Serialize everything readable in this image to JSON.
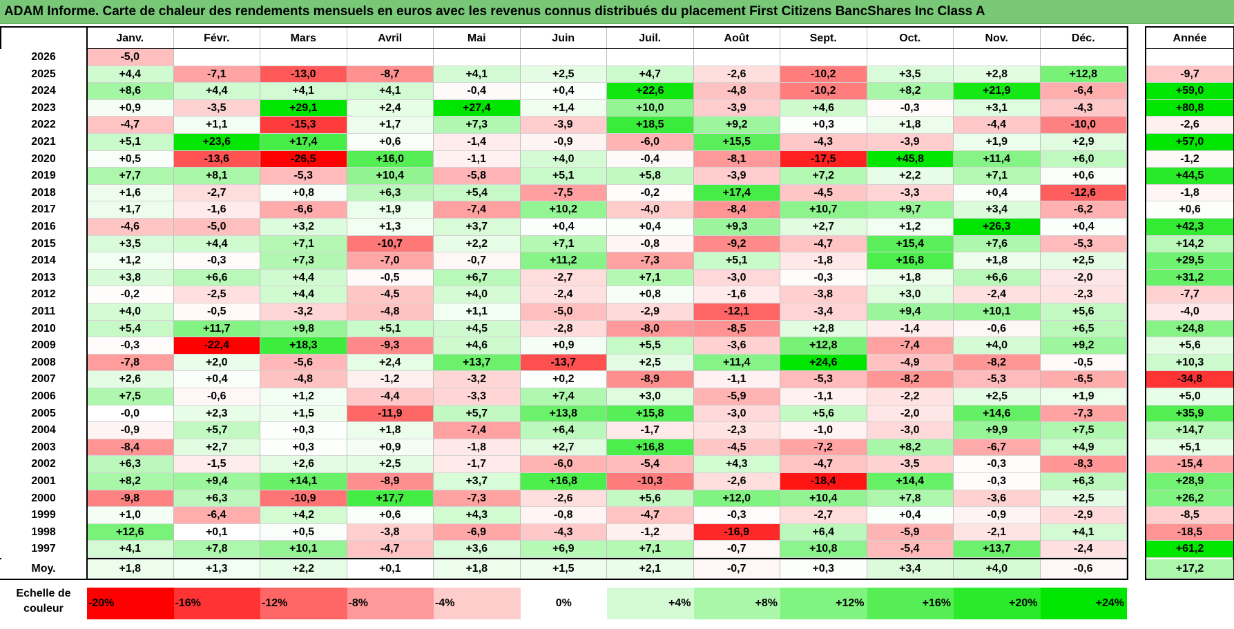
{
  "title": "ADAM Informe. Carte de chaleur des rendements mensuels en euros avec les revenus connus distribués du placement First Citizens BancShares Inc Class A",
  "colors": {
    "title_bg": "#78c878",
    "negative_max": "#ff0000",
    "neutral": "#ffffff",
    "positive_max": "#00e600"
  },
  "chart_data": {
    "type": "heatmap",
    "months": [
      "Janv.",
      "Févr.",
      "Mars",
      "Avril",
      "Mai",
      "Juin",
      "Juil.",
      "Août",
      "Sept.",
      "Oct.",
      "Nov.",
      "Déc."
    ],
    "year_header": "Année",
    "rows": [
      {
        "year": "2026",
        "months": [
          "-5,0",
          "",
          "",
          "",
          "",
          "",
          "",
          "",
          "",
          "",
          "",
          ""
        ],
        "annual": ""
      },
      {
        "year": "2025",
        "months": [
          "+4,4",
          "-7,1",
          "-13,0",
          "-8,7",
          "+4,1",
          "+2,5",
          "+4,7",
          "-2,6",
          "-10,2",
          "+3,5",
          "+2,8",
          "+12,8"
        ],
        "annual": "-9,7"
      },
      {
        "year": "2024",
        "months": [
          "+8,6",
          "+4,4",
          "+4,1",
          "+4,1",
          "-0,4",
          "+0,4",
          "+22,6",
          "-4,8",
          "-10,2",
          "+8,2",
          "+21,9",
          "-6,4"
        ],
        "annual": "+59,0"
      },
      {
        "year": "2023",
        "months": [
          "+0,9",
          "-3,5",
          "+29,1",
          "+2,4",
          "+27,4",
          "+1,4",
          "+10,0",
          "-3,9",
          "+4,6",
          "-0,3",
          "+3,1",
          "-4,3"
        ],
        "annual": "+80,8"
      },
      {
        "year": "2022",
        "months": [
          "-4,7",
          "+1,1",
          "-15,3",
          "+1,7",
          "+7,3",
          "-3,9",
          "+18,5",
          "+9,2",
          "+0,3",
          "+1,8",
          "-4,4",
          "-10,0"
        ],
        "annual": "-2,6"
      },
      {
        "year": "2021",
        "months": [
          "+5,1",
          "+23,6",
          "+17,4",
          "+0,6",
          "-1,4",
          "-0,9",
          "-6,0",
          "+15,5",
          "-4,3",
          "-3,9",
          "+1,9",
          "+2,9"
        ],
        "annual": "+57,0"
      },
      {
        "year": "2020",
        "months": [
          "+0,5",
          "-13,6",
          "-26,5",
          "+16,0",
          "-1,1",
          "+4,0",
          "-0,4",
          "-8,1",
          "-17,5",
          "+45,8",
          "+11,4",
          "+6,0"
        ],
        "annual": "-1,2"
      },
      {
        "year": "2019",
        "months": [
          "+7,7",
          "+8,1",
          "-5,3",
          "+10,4",
          "-5,8",
          "+5,1",
          "+5,8",
          "-3,9",
          "+7,2",
          "+2,2",
          "+7,1",
          "+0,6"
        ],
        "annual": "+44,5"
      },
      {
        "year": "2018",
        "months": [
          "+1,6",
          "-2,7",
          "+0,8",
          "+6,3",
          "+5,4",
          "-7,5",
          "-0,2",
          "+17,4",
          "-4,5",
          "-3,3",
          "+0,4",
          "-12,6"
        ],
        "annual": "-1,8"
      },
      {
        "year": "2017",
        "months": [
          "+1,7",
          "-1,6",
          "-6,6",
          "+1,9",
          "-7,4",
          "+10,2",
          "-4,0",
          "-8,4",
          "+10,7",
          "+9,7",
          "+3,4",
          "-6,2"
        ],
        "annual": "+0,6"
      },
      {
        "year": "2016",
        "months": [
          "-4,6",
          "-5,0",
          "+3,2",
          "+1,3",
          "+3,7",
          "+0,4",
          "+0,4",
          "+9,3",
          "+2,7",
          "+1,2",
          "+26,3",
          "+0,4"
        ],
        "annual": "+42,3"
      },
      {
        "year": "2015",
        "months": [
          "+3,5",
          "+4,4",
          "+7,1",
          "-10,7",
          "+2,2",
          "+7,1",
          "-0,8",
          "-9,2",
          "-4,7",
          "+15,4",
          "+7,6",
          "-5,3"
        ],
        "annual": "+14,2"
      },
      {
        "year": "2014",
        "months": [
          "+1,2",
          "-0,3",
          "+7,3",
          "-7,0",
          "-0,7",
          "+11,2",
          "-7,3",
          "+5,1",
          "-1,8",
          "+16,8",
          "+1,8",
          "+2,5"
        ],
        "annual": "+29,5"
      },
      {
        "year": "2013",
        "months": [
          "+3,8",
          "+6,6",
          "+4,4",
          "-0,5",
          "+6,7",
          "-2,7",
          "+7,1",
          "-3,0",
          "-0,3",
          "+1,8",
          "+6,6",
          "-2,0"
        ],
        "annual": "+31,2"
      },
      {
        "year": "2012",
        "months": [
          "-0,2",
          "-2,5",
          "+4,4",
          "-4,5",
          "+4,0",
          "-2,4",
          "+0,8",
          "-1,6",
          "-3,8",
          "+3,0",
          "-2,4",
          "-2,3"
        ],
        "annual": "-7,7"
      },
      {
        "year": "2011",
        "months": [
          "+4,0",
          "-0,5",
          "-3,2",
          "-4,8",
          "+1,1",
          "-5,0",
          "-2,9",
          "-12,1",
          "-3,4",
          "+9,4",
          "+10,1",
          "+5,6"
        ],
        "annual": "-4,0"
      },
      {
        "year": "2010",
        "months": [
          "+5,4",
          "+11,7",
          "+9,8",
          "+5,1",
          "+4,5",
          "-2,8",
          "-8,0",
          "-8,5",
          "+2,8",
          "-1,4",
          "-0,6",
          "+6,5"
        ],
        "annual": "+24,8"
      },
      {
        "year": "2009",
        "months": [
          "-0,3",
          "-22,4",
          "+18,3",
          "-9,3",
          "+4,6",
          "+0,9",
          "+5,5",
          "-3,6",
          "+12,8",
          "-7,4",
          "+4,0",
          "+9,2"
        ],
        "annual": "+5,6"
      },
      {
        "year": "2008",
        "months": [
          "-7,8",
          "+2,0",
          "-5,6",
          "+2,4",
          "+13,7",
          "-13,7",
          "+2,5",
          "+11,4",
          "+24,6",
          "-4,9",
          "-8,2",
          "-0,5"
        ],
        "annual": "+10,3"
      },
      {
        "year": "2007",
        "months": [
          "+2,6",
          "+0,4",
          "-4,8",
          "-1,2",
          "-3,2",
          "+0,2",
          "-8,9",
          "-1,1",
          "-5,3",
          "-8,2",
          "-5,3",
          "-6,5"
        ],
        "annual": "-34,8"
      },
      {
        "year": "2006",
        "months": [
          "+7,5",
          "-0,6",
          "+1,2",
          "-4,4",
          "-3,3",
          "+7,4",
          "+3,0",
          "-5,9",
          "-1,1",
          "-2,2",
          "+2,5",
          "+1,9"
        ],
        "annual": "+5,0"
      },
      {
        "year": "2005",
        "months": [
          "-0,0",
          "+2,3",
          "+1,5",
          "-11,9",
          "+5,7",
          "+13,8",
          "+15,8",
          "-3,0",
          "+5,6",
          "-2,0",
          "+14,6",
          "-7,3"
        ],
        "annual": "+35,9"
      },
      {
        "year": "2004",
        "months": [
          "-0,9",
          "+5,7",
          "+0,3",
          "+1,8",
          "-7,4",
          "+6,4",
          "-1,7",
          "-2,3",
          "-1,0",
          "-3,0",
          "+9,9",
          "+7,5"
        ],
        "annual": "+14,7"
      },
      {
        "year": "2003",
        "months": [
          "-8,4",
          "+2,7",
          "+0,3",
          "+0,9",
          "-1,8",
          "+2,7",
          "+16,8",
          "-4,5",
          "-7,2",
          "+8,2",
          "-6,7",
          "+4,9"
        ],
        "annual": "+5,1"
      },
      {
        "year": "2002",
        "months": [
          "+6,3",
          "-1,5",
          "+2,6",
          "+2,5",
          "-1,7",
          "-6,0",
          "-5,4",
          "+4,3",
          "-4,7",
          "-3,5",
          "-0,3",
          "-8,3"
        ],
        "annual": "-15,4"
      },
      {
        "year": "2001",
        "months": [
          "+8,2",
          "+9,4",
          "+14,1",
          "-8,9",
          "+3,7",
          "+16,8",
          "-10,3",
          "-2,6",
          "-18,4",
          "+14,4",
          "-0,3",
          "+6,3"
        ],
        "annual": "+28,9"
      },
      {
        "year": "2000",
        "months": [
          "-9,8",
          "+6,3",
          "-10,9",
          "+17,7",
          "-7,3",
          "-2,6",
          "+5,6",
          "+12,0",
          "+10,4",
          "+7,8",
          "-3,6",
          "+2,5"
        ],
        "annual": "+26,2"
      },
      {
        "year": "1999",
        "months": [
          "+1,0",
          "-6,4",
          "+4,2",
          "+0,6",
          "+4,3",
          "-0,8",
          "-4,7",
          "-0,3",
          "-2,7",
          "+0,4",
          "-0,9",
          "-2,9"
        ],
        "annual": "-8,5"
      },
      {
        "year": "1998",
        "months": [
          "+12,6",
          "+0,1",
          "+0,5",
          "-3,8",
          "-6,9",
          "-4,3",
          "-1,2",
          "-16,9",
          "+6,4",
          "-5,9",
          "-2,1",
          "+4,1"
        ],
        "annual": "-18,5"
      },
      {
        "year": "1997",
        "months": [
          "+4,1",
          "+7,8",
          "+10,1",
          "-4,7",
          "+3,6",
          "+6,9",
          "+7,1",
          "-0,7",
          "+10,8",
          "-5,4",
          "+13,7",
          "-2,4"
        ],
        "annual": "+61,2"
      }
    ],
    "average_label": "Moy.",
    "averages": [
      "+1,8",
      "+1,3",
      "+2,2",
      "+0,1",
      "+1,8",
      "+1,5",
      "+2,1",
      "-0,7",
      "+0,3",
      "+3,4",
      "+4,0",
      "-0,6"
    ],
    "average_annual": "+17,2",
    "scale_label": "Echelle de couleur",
    "scale": [
      "-20%",
      "-16%",
      "-12%",
      "-8%",
      "-4%",
      "0%",
      "+4%",
      "+8%",
      "+12%",
      "+16%",
      "+20%",
      "+24%"
    ]
  }
}
